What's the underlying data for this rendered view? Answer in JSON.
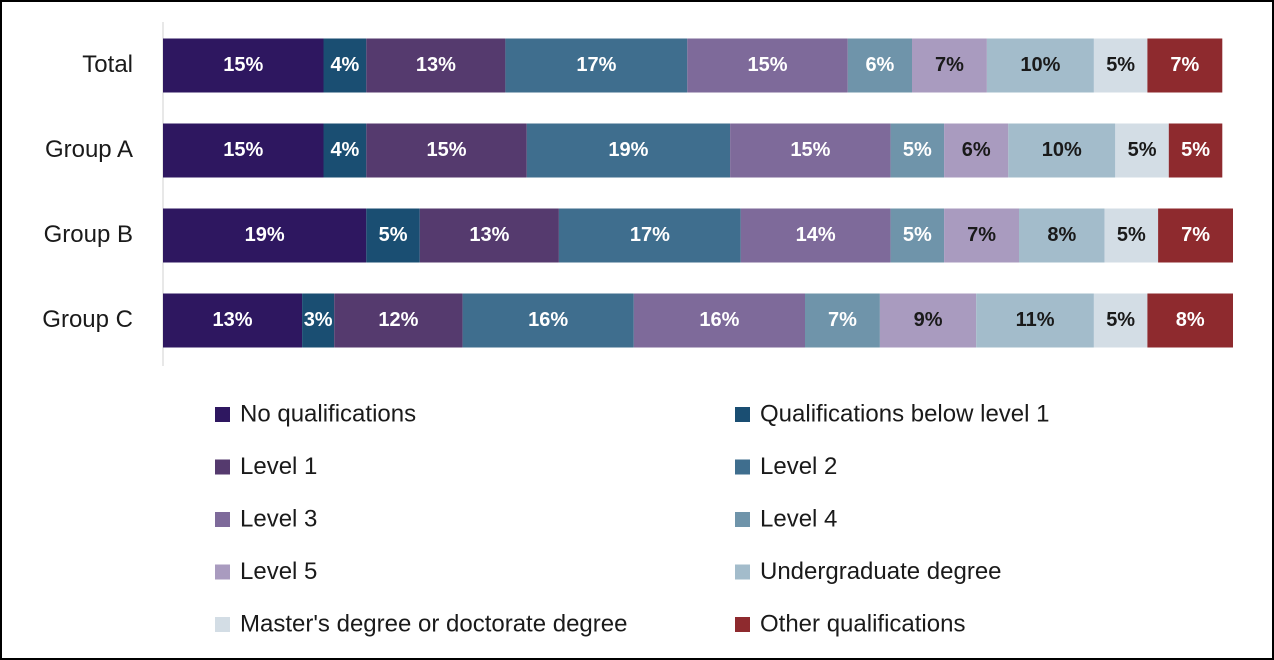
{
  "chart_data": {
    "type": "stacked-bar-horizontal",
    "categories": [
      "Total",
      "Group A",
      "Group B",
      "Group C"
    ],
    "xlim": [
      0,
      100
    ],
    "series": [
      {
        "name": "No qualifications",
        "color": "#2e1760",
        "values": [
          15,
          15,
          19,
          13
        ],
        "value_labels": [
          "15%",
          "15%",
          "19%",
          "13%"
        ]
      },
      {
        "name": "Qualifications below level 1",
        "color": "#1a4e72",
        "values": [
          4,
          4,
          5,
          3
        ],
        "value_labels": [
          "4%",
          "4%",
          "5%",
          "3%"
        ]
      },
      {
        "name": "Level 1",
        "color": "#553a6e",
        "values": [
          13,
          15,
          13,
          12
        ],
        "value_labels": [
          "13%",
          "15%",
          "13%",
          "12%"
        ]
      },
      {
        "name": "Level 2",
        "color": "#3f6e8e",
        "values": [
          17,
          19,
          17,
          16
        ],
        "value_labels": [
          "17%",
          "19%",
          "17%",
          "16%"
        ]
      },
      {
        "name": "Level 3",
        "color": "#7e6a9a",
        "values": [
          15,
          15,
          14,
          16
        ],
        "value_labels": [
          "15%",
          "15%",
          "14%",
          "16%"
        ]
      },
      {
        "name": "Level 4",
        "color": "#6f94aa",
        "values": [
          6,
          5,
          5,
          7
        ],
        "value_labels": [
          "6%",
          "5%",
          "5%",
          "7%"
        ]
      },
      {
        "name": "Level 5",
        "color": "#a99bbf",
        "values": [
          7,
          6,
          7,
          9
        ],
        "value_labels": [
          "7%",
          "6%",
          "7%",
          "9%"
        ]
      },
      {
        "name": "Undergraduate degree",
        "color": "#a3bccb",
        "values": [
          10,
          10,
          8,
          11
        ],
        "value_labels": [
          "10%",
          "10%",
          "8%",
          "11%"
        ]
      },
      {
        "name": "Master's degree or doctorate degree",
        "color": "#d3dde5",
        "values": [
          5,
          5,
          5,
          5
        ],
        "value_labels": [
          "5%",
          "5%",
          "5%",
          "5%"
        ]
      },
      {
        "name": "Other qualifications",
        "color": "#8e2a2e",
        "values": [
          7,
          5,
          7,
          8
        ],
        "value_labels": [
          "7%",
          "5%",
          "7%",
          "8%"
        ]
      }
    ]
  }
}
